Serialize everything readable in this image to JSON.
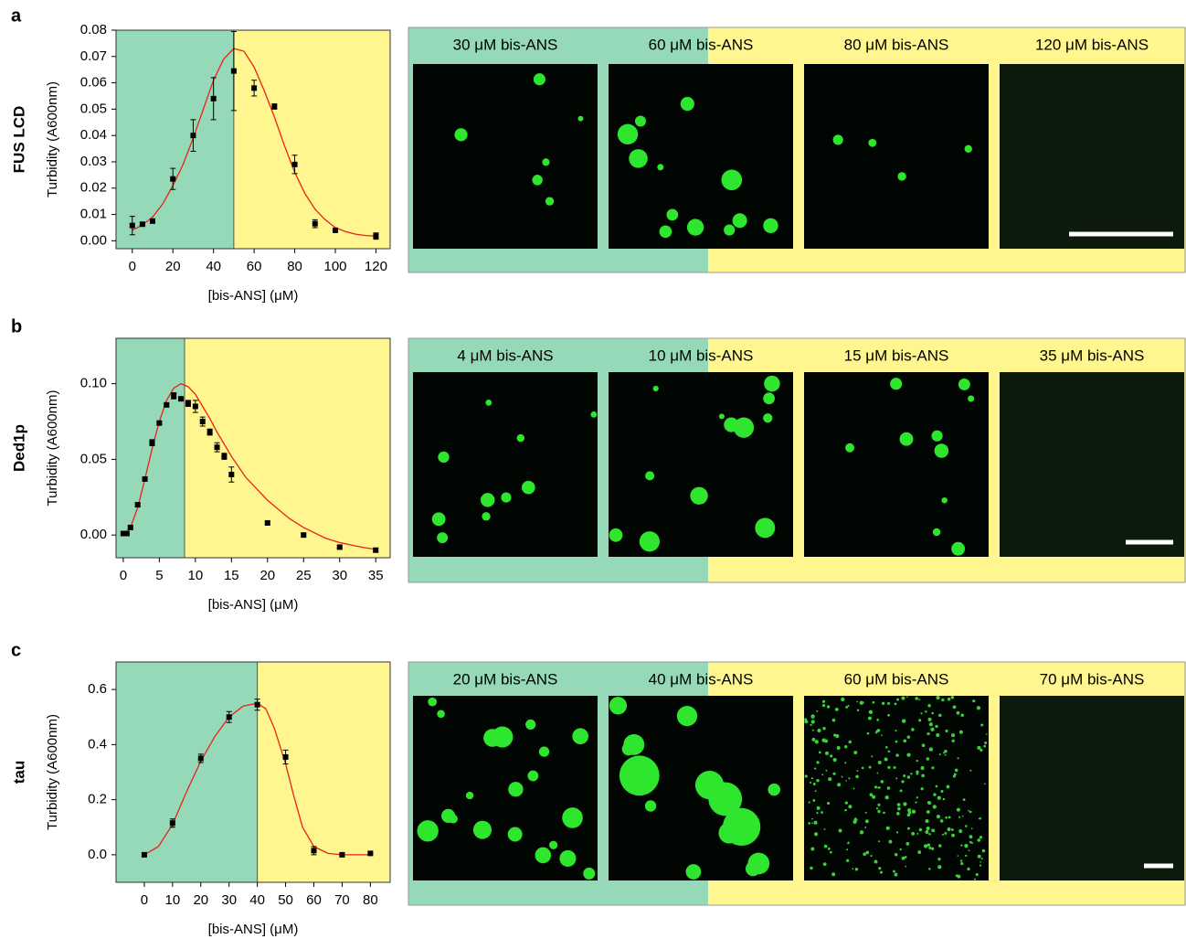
{
  "panels": [
    {
      "label": "a",
      "name": "FUS LCD",
      "images": [
        "30 μM bis-ANS",
        "60 μM bis-ANS",
        "80 μM bis-ANS",
        "120 μM bis-ANS"
      ]
    },
    {
      "label": "b",
      "name": "Ded1p",
      "images": [
        "4 μM bis-ANS",
        "10 μM bis-ANS",
        "15 μM bis-ANS",
        "35 μM bis-ANS"
      ]
    },
    {
      "label": "c",
      "name": "tau",
      "images": [
        "20 μM bis-ANS",
        "40 μM bis-ANS",
        "60 μM bis-ANS",
        "70 μM bis-ANS"
      ]
    }
  ],
  "chart_data": [
    {
      "type": "scatter",
      "xlabel": "[bis-ANS] (μM)",
      "ylabel": "Turbidity (A600nm)",
      "color": "#000000",
      "fit_color": "#e8221c",
      "shade_colors": [
        "#95d9b8",
        "#fff68f"
      ],
      "shade_boundary": 50,
      "x": [
        0,
        5,
        10,
        20,
        30,
        40,
        50,
        60,
        70,
        80,
        90,
        100,
        120
      ],
      "values": [
        0.0058,
        0.0063,
        0.0075,
        0.0235,
        0.04,
        0.054,
        0.0645,
        0.058,
        0.051,
        0.029,
        0.0065,
        0.004,
        0.0018
      ],
      "errors": [
        0.0035,
        0.0005,
        0.0008,
        0.004,
        0.006,
        0.008,
        0.015,
        0.003,
        0.001,
        0.0035,
        0.0015,
        0.0008,
        0.0012
      ],
      "fit": {
        "x": [
          0,
          5,
          10,
          15,
          20,
          25,
          30,
          35,
          40,
          45,
          50,
          55,
          60,
          65,
          70,
          75,
          80,
          85,
          90,
          95,
          100,
          105,
          110,
          115,
          120
        ],
        "y": [
          0.004,
          0.006,
          0.009,
          0.014,
          0.021,
          0.029,
          0.039,
          0.05,
          0.061,
          0.069,
          0.073,
          0.072,
          0.066,
          0.057,
          0.047,
          0.036,
          0.026,
          0.018,
          0.012,
          0.008,
          0.005,
          0.0035,
          0.0025,
          0.002,
          0.0018
        ]
      },
      "xlim": [
        -8,
        127
      ],
      "ylim": [
        -0.003,
        0.08
      ],
      "xticks": [
        0,
        20,
        40,
        60,
        80,
        100,
        120
      ],
      "yticks": [
        {
          "value": 0,
          "label": "0.00"
        },
        0.01,
        0.02,
        0.03,
        0.04,
        0.05,
        0.06,
        0.07,
        0.08
      ]
    },
    {
      "type": "scatter",
      "xlabel": "[bis-ANS] (μM)",
      "ylabel": "Turbidity (A600nm)",
      "color": "#000000",
      "fit_color": "#e8221c",
      "shade_colors": [
        "#95d9b8",
        "#fff68f"
      ],
      "shade_boundary": 8.5,
      "x": [
        0,
        0.5,
        1,
        2,
        3,
        4,
        5,
        6,
        7,
        8,
        9,
        10,
        11,
        12,
        13,
        14,
        15,
        20,
        25,
        30,
        35
      ],
      "values": [
        0.001,
        0.001,
        0.005,
        0.02,
        0.037,
        0.061,
        0.074,
        0.086,
        0.092,
        0.09,
        0.087,
        0.085,
        0.075,
        0.068,
        0.058,
        0.052,
        0.04,
        0.008,
        0.0,
        -0.008,
        -0.01
      ],
      "errors": [
        0.001,
        0.001,
        0.001,
        0.001,
        0.001,
        0.002,
        0.001,
        0.001,
        0.002,
        0.001,
        0.002,
        0.004,
        0.003,
        0.002,
        0.003,
        0.002,
        0.005,
        0.001,
        0.001,
        0.001,
        0.001
      ],
      "fit": {
        "x": [
          0,
          1,
          2,
          3,
          4,
          5,
          6,
          7,
          8,
          9,
          10,
          11,
          12,
          13,
          14,
          15,
          17,
          20,
          23,
          25,
          28,
          30,
          33,
          35
        ],
        "y": [
          0,
          0.005,
          0.018,
          0.037,
          0.057,
          0.075,
          0.089,
          0.097,
          0.1,
          0.098,
          0.093,
          0.085,
          0.077,
          0.068,
          0.06,
          0.052,
          0.038,
          0.023,
          0.011,
          0.005,
          -0.002,
          -0.005,
          -0.008,
          -0.0095
        ]
      },
      "xlim": [
        -1,
        37
      ],
      "ylim": [
        -0.015,
        0.13
      ],
      "xticks": [
        0,
        5,
        10,
        15,
        20,
        25,
        30,
        35
      ],
      "yticks": [
        {
          "value": 0,
          "label": "0.00"
        },
        0.05,
        {
          "value": 0.1,
          "label": "0.10"
        }
      ]
    },
    {
      "type": "scatter",
      "xlabel": "[bis-ANS] (μM)",
      "ylabel": "Turbidity (A600nm)",
      "color": "#000000",
      "fit_color": "#e8221c",
      "shade_colors": [
        "#95d9b8",
        "#fff68f"
      ],
      "shade_boundary": 40,
      "x": [
        0,
        10,
        20,
        30,
        40,
        50,
        60,
        70,
        80
      ],
      "values": [
        0,
        0.115,
        0.35,
        0.5,
        0.545,
        0.355,
        0.015,
        0.0,
        0.005
      ],
      "errors": [
        0.005,
        0.015,
        0.015,
        0.02,
        0.02,
        0.025,
        0.015,
        0.005,
        0.005
      ],
      "fit": {
        "x": [
          0,
          5,
          10,
          15,
          20,
          25,
          30,
          35,
          40,
          43,
          46,
          50,
          53,
          56,
          60,
          65,
          70,
          80
        ],
        "y": [
          0,
          0.03,
          0.11,
          0.23,
          0.34,
          0.43,
          0.5,
          0.54,
          0.55,
          0.53,
          0.46,
          0.33,
          0.21,
          0.1,
          0.03,
          0.005,
          0,
          0
        ]
      },
      "xlim": [
        -10,
        87
      ],
      "ylim": [
        -0.1,
        0.7
      ],
      "xticks": [
        0,
        10,
        20,
        30,
        40,
        50,
        60,
        70,
        80
      ],
      "yticks": [
        {
          "value": 0,
          "label": "0.0"
        },
        0.2,
        0.4,
        0.6
      ]
    }
  ]
}
